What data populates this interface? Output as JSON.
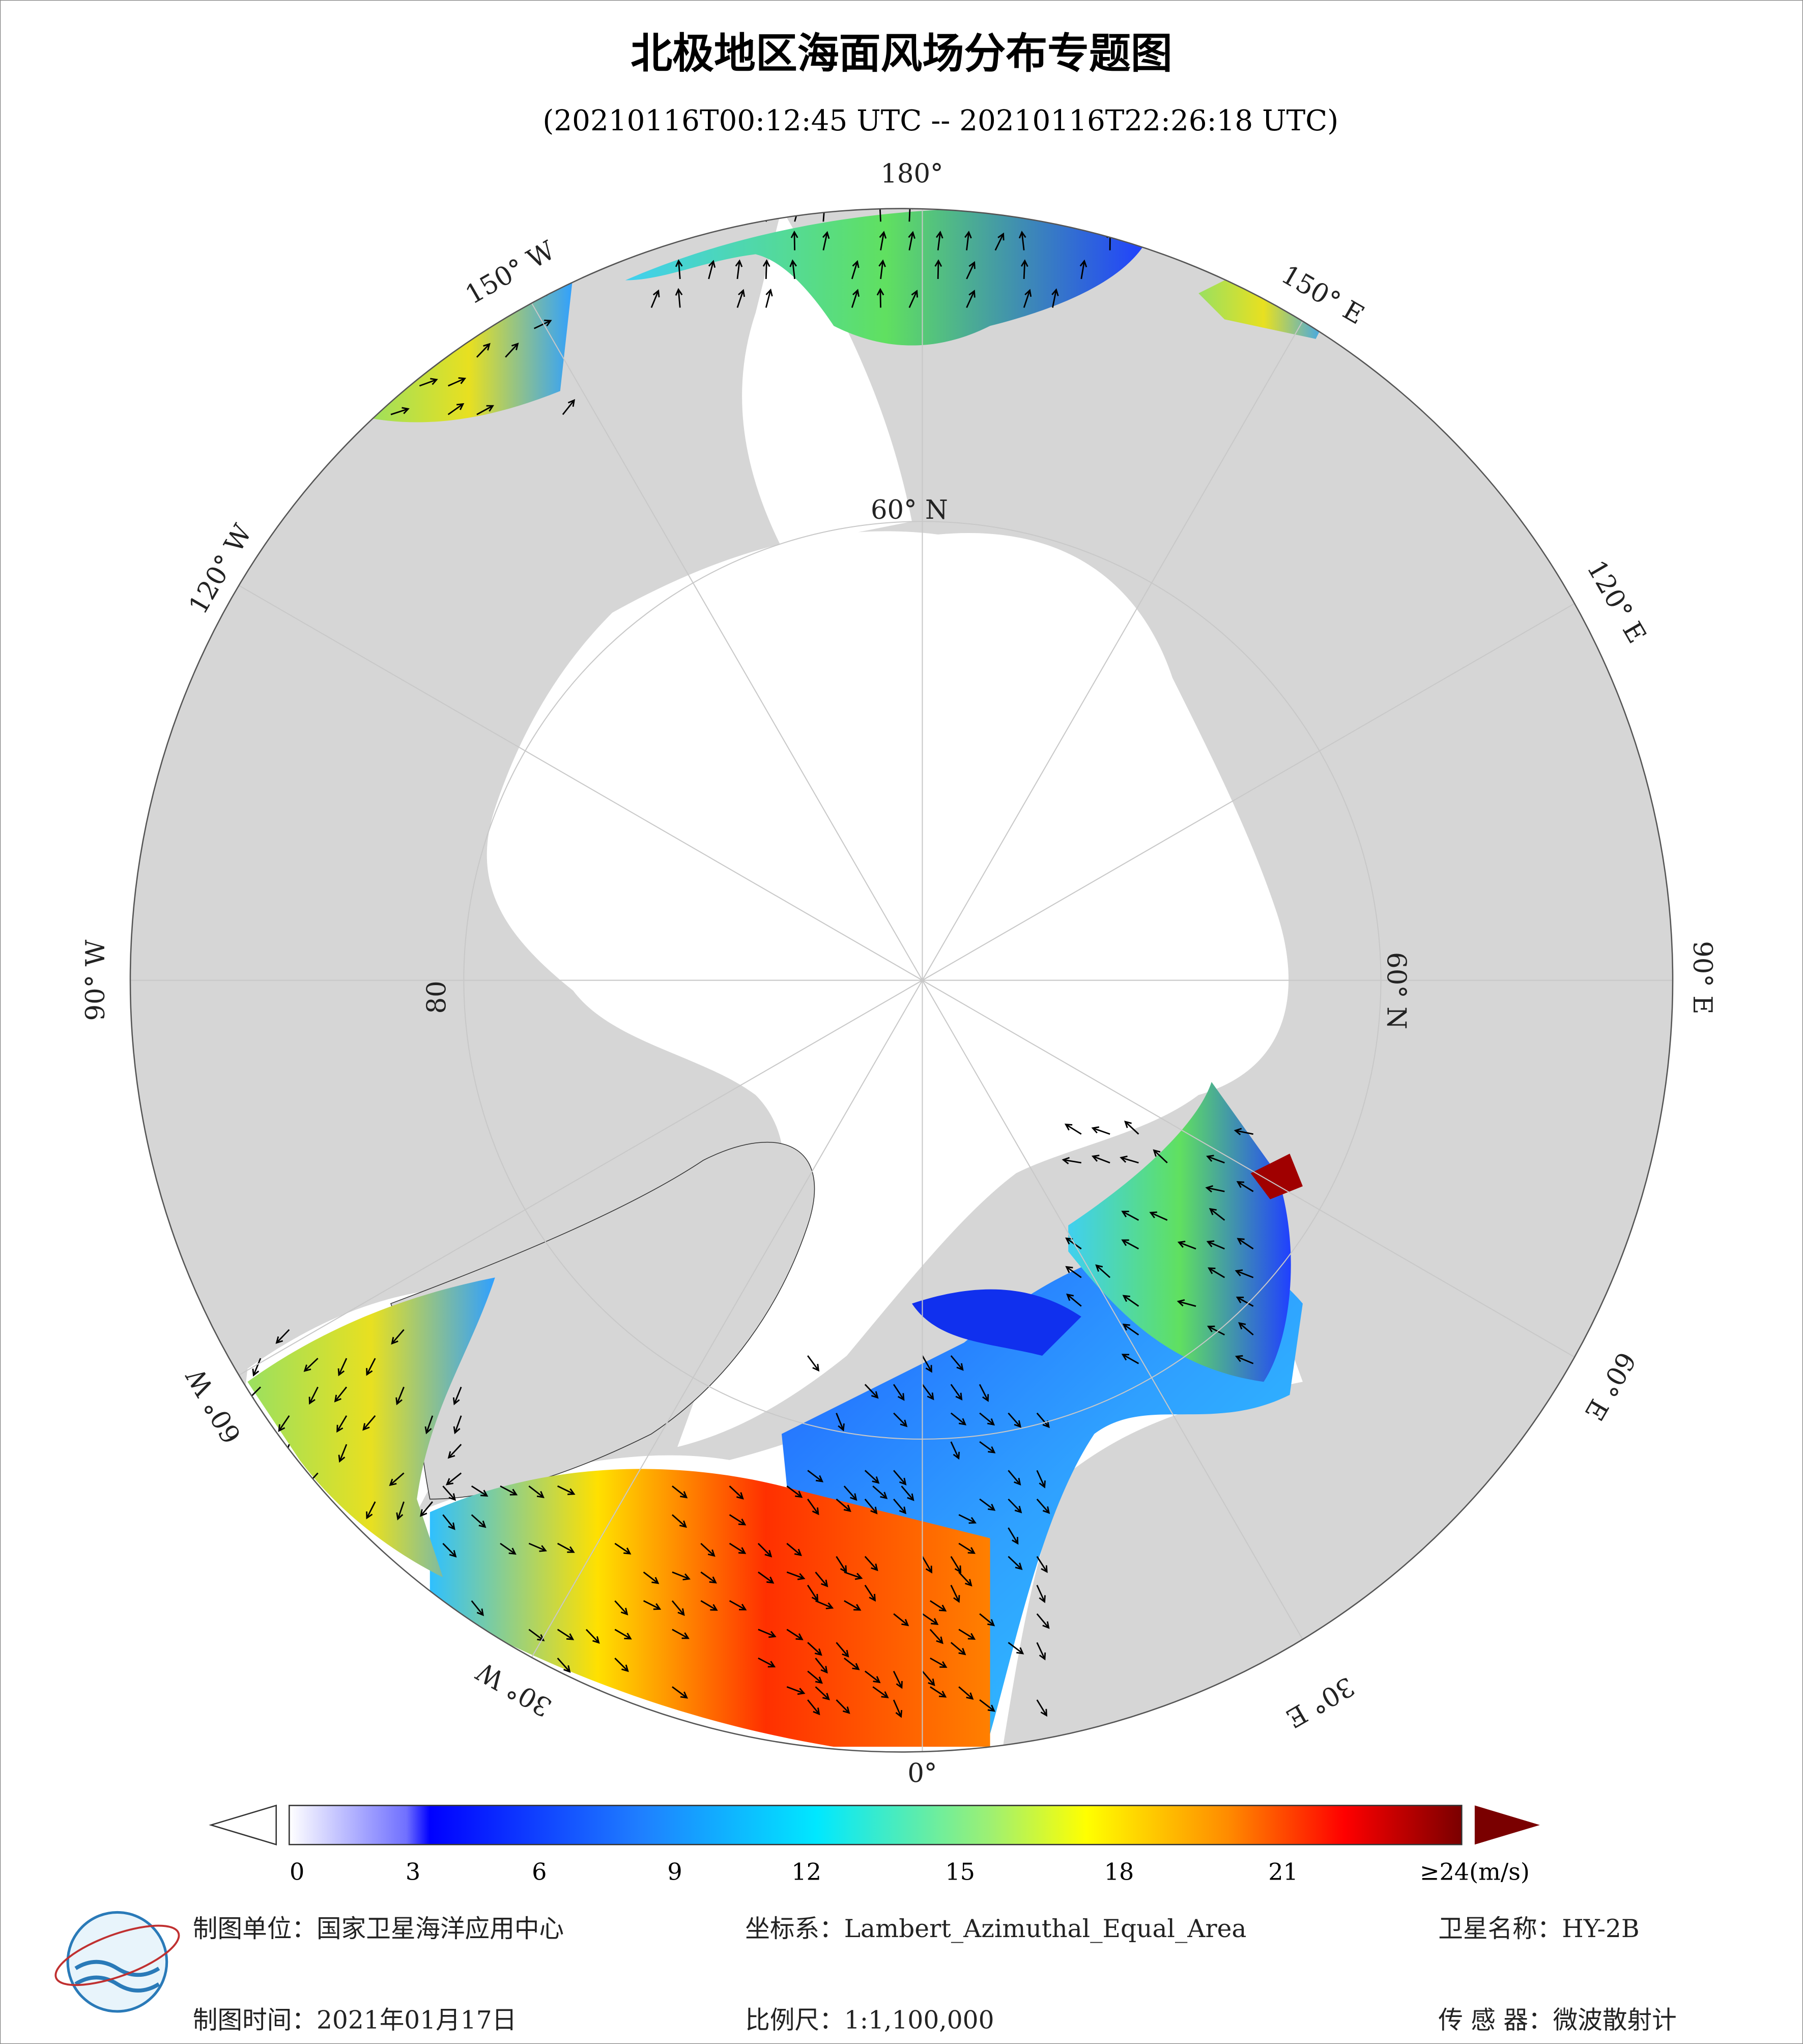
{
  "header": {
    "title": "北极地区海面风场分布专题图",
    "subtitle": "(20210116T00:12:45 UTC -- 20210116T22:26:18 UTC)"
  },
  "graticule": {
    "lon_labels": [
      "180°",
      "150° W",
      "120° W",
      "90° W",
      "60° W",
      "30° W",
      "0°",
      "30° E",
      "60° E",
      "90° E",
      "120° E",
      "150° E"
    ],
    "lat_labels": [
      "60° N",
      "60° N",
      "80"
    ]
  },
  "colorbar": {
    "ticks": [
      0,
      3,
      6,
      9,
      12,
      15,
      18,
      21
    ],
    "last_label": "≥24(m/s)"
  },
  "footer": {
    "unit": "制图单位：国家卫星海洋应用中心",
    "crs": "坐标系：Lambert_Azimuthal_Equal_Area",
    "satellite": "卫星名称：HY-2B",
    "date": "制图时间：2021年01月17日",
    "scale": "比例尺：1:1,100,000",
    "sensor": "传 感 器：微波散射计"
  }
}
